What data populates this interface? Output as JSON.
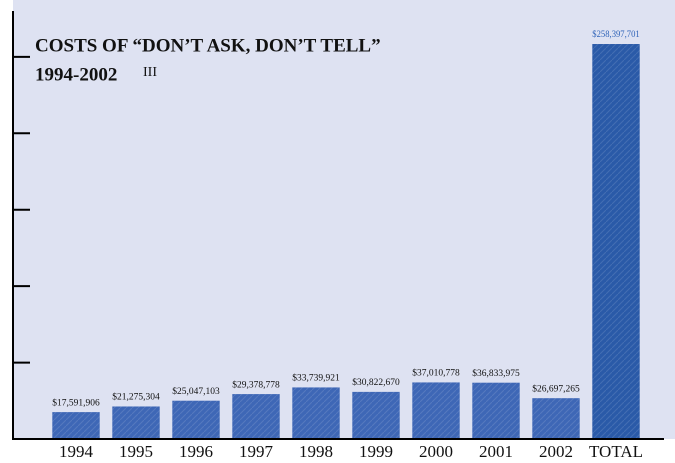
{
  "chart_data": {
    "type": "bar",
    "title": "COSTS OF “DON’T ASK, DON’T TELL”",
    "subtitle": "1994-2002",
    "note": "III",
    "categories": [
      "1994",
      "1995",
      "1996",
      "1997",
      "1998",
      "1999",
      "2000",
      "2001",
      "2002",
      "TOTAL"
    ],
    "values": [
      17591906,
      21275304,
      25047103,
      29378778,
      33739921,
      30822670,
      37010778,
      36833975,
      26697265,
      258397701
    ],
    "value_labels": [
      "$17,591,906",
      "$21,275,304",
      "$25,047,103",
      "$29,378,778",
      "$33,739,921",
      "$30,822,670",
      "$37,010,778",
      "$36,833,975",
      "$26,697,265",
      "$258,397,701"
    ],
    "colors": [
      "#3e67b6",
      "#3e67b6",
      "#3e67b6",
      "#3e67b6",
      "#3e67b6",
      "#3e67b6",
      "#3e67b6",
      "#3e67b6",
      "#3e67b6",
      "#2a5aa8"
    ],
    "ylim": [
      0,
      280000000
    ],
    "yticks": [
      0,
      50000000,
      100000000,
      150000000,
      200000000,
      250000000
    ],
    "grid": false
  }
}
